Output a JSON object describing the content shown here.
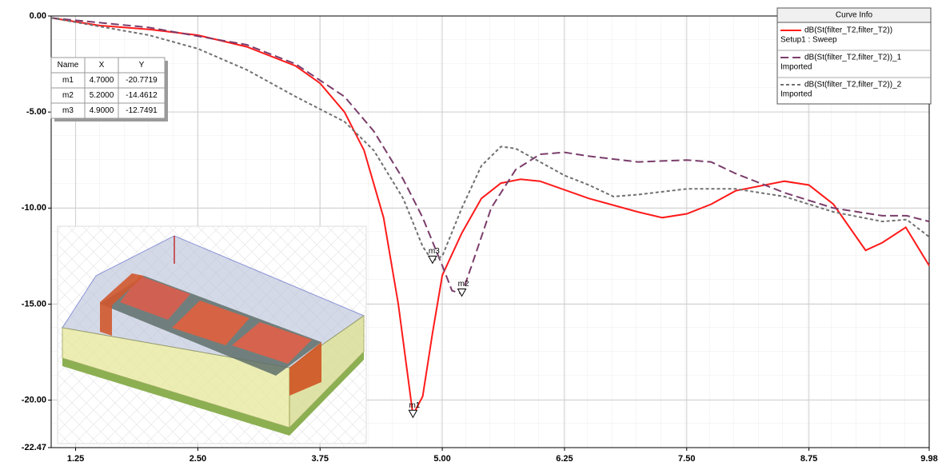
{
  "chart_data": {
    "type": "line",
    "ylim": [
      -22.47,
      0
    ],
    "yticks": [
      {
        "value": 0,
        "label": "0.00"
      },
      {
        "value": -5,
        "label": "-5.00"
      },
      {
        "value": -10,
        "label": "-10.00"
      },
      {
        "value": -15,
        "label": "-15.00"
      },
      {
        "value": -20,
        "label": "-20.00"
      },
      {
        "value": -22.47,
        "label": "-22.47"
      }
    ],
    "xlim": [
      1,
      9.98
    ],
    "xticks": [
      1.25,
      {
        "value": 2.5,
        "label": "2.50"
      },
      3.75,
      {
        "value": 5,
        "label": "5.00"
      },
      6.25,
      {
        "value": 7.5,
        "label": "7.50"
      },
      8.75,
      9.98
    ],
    "grid": true,
    "legend_title": "Curve Info",
    "series": [
      {
        "name": "dB(St(filter_T2,filter_T2))",
        "source": "Setup1 : Sweep",
        "color": "#ff1a1a",
        "dash": "none",
        "x": [
          1.0,
          1.5,
          2.0,
          2.5,
          3.0,
          3.5,
          3.75,
          4.0,
          4.2,
          4.4,
          4.55,
          4.7,
          4.8,
          4.9,
          5.0,
          5.2,
          5.4,
          5.6,
          5.8,
          6.0,
          6.5,
          7.0,
          7.25,
          7.5,
          7.75,
          8.0,
          8.5,
          8.75,
          9.0,
          9.33,
          9.5,
          9.74,
          9.98
        ],
        "values": [
          -0.1,
          -0.5,
          -0.7,
          -1.0,
          -1.6,
          -2.6,
          -3.5,
          -5.0,
          -7.0,
          -10.5,
          -15.0,
          -20.77,
          -19.8,
          -16.5,
          -13.5,
          -11.3,
          -9.5,
          -8.7,
          -8.5,
          -8.6,
          -9.5,
          -10.2,
          -10.5,
          -10.3,
          -9.8,
          -9.1,
          -8.6,
          -8.8,
          -9.8,
          -12.2,
          -11.8,
          -11.0,
          -13.0
        ]
      },
      {
        "name": "dB(St(filter_T2,filter_T2))_1",
        "source": "Imported",
        "color": "#7a3d6b",
        "dash": "10 5",
        "x": [
          1.0,
          2.0,
          3.0,
          3.5,
          4.0,
          4.3,
          4.6,
          4.8,
          5.0,
          5.1,
          5.2,
          5.3,
          5.5,
          5.75,
          6.0,
          6.25,
          6.5,
          7.0,
          7.5,
          7.75,
          8.0,
          8.5,
          9.0,
          9.5,
          9.75,
          9.98
        ],
        "values": [
          -0.1,
          -0.6,
          -1.5,
          -2.5,
          -4.2,
          -6.0,
          -8.5,
          -10.5,
          -13.0,
          -14.3,
          -14.46,
          -13.0,
          -10.0,
          -8.0,
          -7.2,
          -7.1,
          -7.3,
          -7.6,
          -7.5,
          -7.6,
          -8.2,
          -9.2,
          -10.0,
          -10.4,
          -10.4,
          -10.7
        ]
      },
      {
        "name": "dB(St(filter_T2,filter_T2))_2",
        "source": "Imported",
        "color": "#707070",
        "dash": "4 3",
        "x": [
          1.0,
          2.0,
          2.5,
          3.0,
          3.5,
          4.0,
          4.3,
          4.6,
          4.8,
          4.9,
          5.0,
          5.2,
          5.4,
          5.6,
          5.75,
          6.0,
          6.25,
          6.5,
          6.75,
          7.0,
          7.5,
          8.0,
          8.5,
          9.0,
          9.5,
          9.75,
          9.98
        ],
        "values": [
          -0.1,
          -1.0,
          -1.7,
          -2.8,
          -4.2,
          -5.5,
          -7.0,
          -9.5,
          -12.0,
          -12.75,
          -12.5,
          -10.0,
          -7.8,
          -6.8,
          -6.9,
          -7.6,
          -8.3,
          -8.8,
          -9.4,
          -9.3,
          -9.0,
          -9.0,
          -9.4,
          -10.2,
          -10.7,
          -10.6,
          -11.5
        ]
      }
    ],
    "marker_table": {
      "header": [
        "Name",
        "X",
        "Y"
      ],
      "markers": [
        {
          "name": "m1",
          "x": {
            "value": 4.7,
            "label": "4.7000"
          },
          "y": {
            "value": -20.7719,
            "label": "-20.7719"
          }
        },
        {
          "name": "m2",
          "x": {
            "value": 5.2,
            "label": "5.2000"
          },
          "y": {
            "value": -14.4612,
            "label": "-14.4612"
          }
        },
        {
          "name": "m3",
          "x": {
            "value": 4.9,
            "label": "4.9000"
          },
          "y": {
            "value": -12.7491,
            "label": "-12.7491"
          }
        }
      ]
    }
  }
}
